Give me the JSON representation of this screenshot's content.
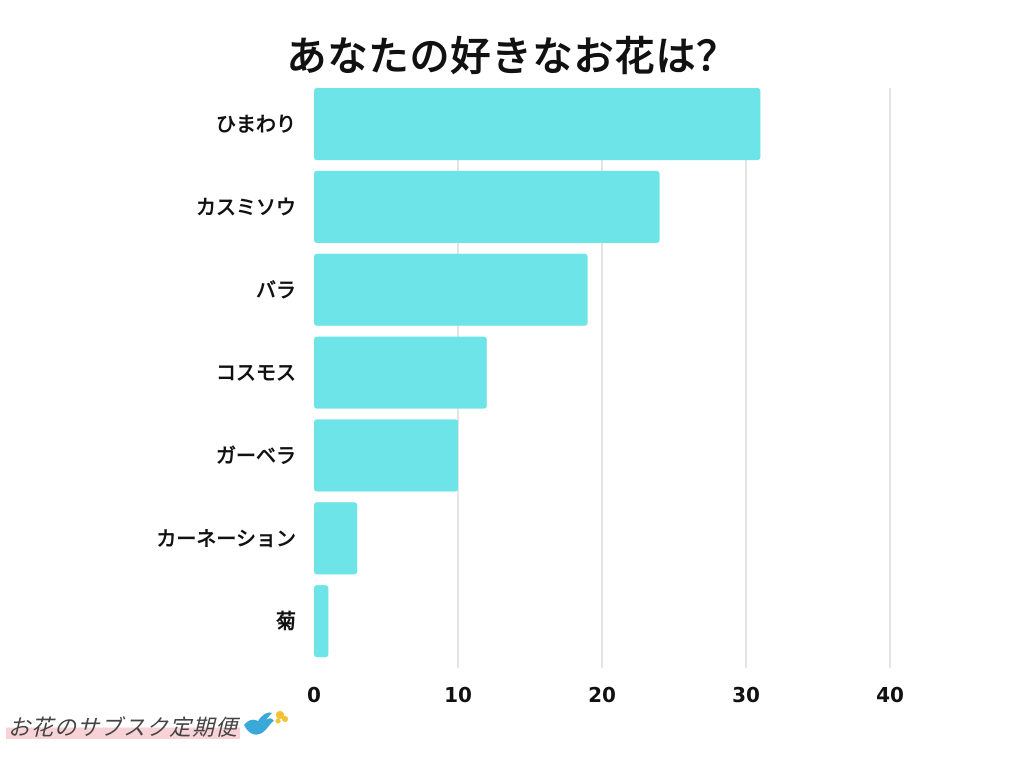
{
  "chart_data": {
    "type": "bar",
    "orientation": "horizontal",
    "title": "あなたの好きなお花は？",
    "categories": [
      "ひまわり",
      "カスミソウ",
      "バラ",
      "コスモス",
      "ガーベラ",
      "カーネーション",
      "菊"
    ],
    "values": [
      31,
      24,
      19,
      12,
      10,
      3,
      1
    ],
    "xlim": [
      0,
      40
    ],
    "xticks": [
      "0",
      "10",
      "20",
      "30",
      "40"
    ],
    "xlabel": "",
    "ylabel": "",
    "grid": true,
    "bar_color": "#6ce4e8",
    "grid_color": "#c8c8c8"
  },
  "logo": {
    "text": "お花のサブスク定期便",
    "accent_color": "#f7d3d8",
    "bird_color": "#3aa8d8",
    "flower_color": "#f2c230"
  }
}
